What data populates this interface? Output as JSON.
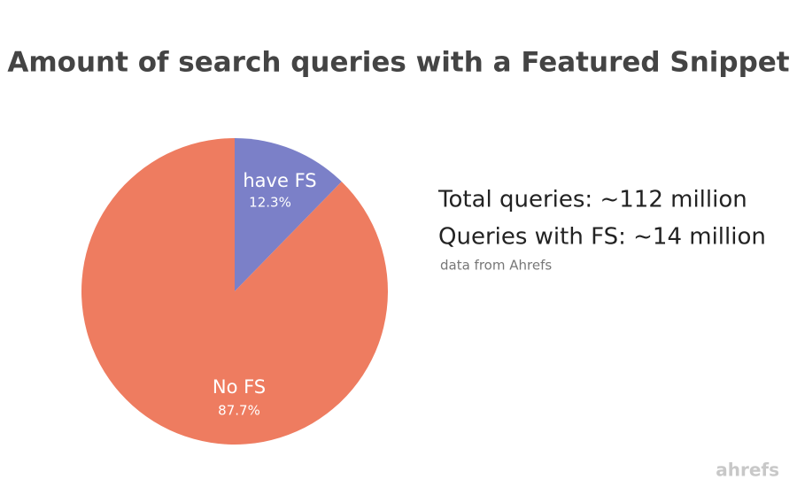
{
  "chart_data": {
    "type": "pie",
    "title": "Amount of search queries with a Featured Snippet",
    "categories": [
      "have FS",
      "No FS"
    ],
    "values": [
      12.3,
      87.7
    ],
    "value_labels": [
      "12.3%",
      "87.7%"
    ],
    "colors": [
      "#7b80c8",
      "#ee7c60"
    ],
    "annotations": [
      "Total queries: ~112 million",
      "Queries with FS: ~14 million",
      "data from Ahrefs"
    ]
  },
  "brand": "ahrefs"
}
